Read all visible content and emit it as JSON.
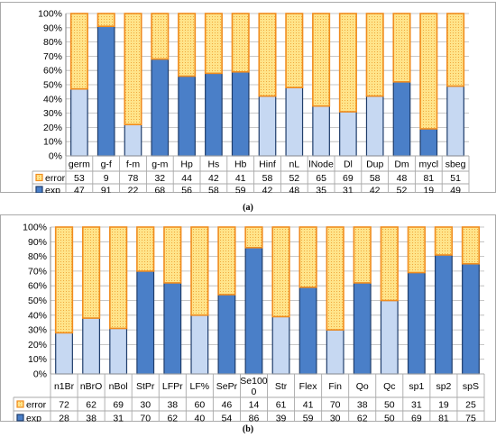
{
  "colors": {
    "error_fill": "#ffe48a",
    "error_border": "#f08c1e",
    "exp_dark": "#4a7fc8",
    "exp_light": "#c6d8f2",
    "exp_border": "#1f3d6b",
    "grid": "#b5b5b5",
    "frame": "#a9a9a9"
  },
  "captions": {
    "a": "(a)",
    "b": "(b)"
  },
  "chart_data": [
    {
      "type": "bar",
      "stacked": true,
      "percent_stacked": true,
      "title": "",
      "xlabel": "",
      "ylabel": "",
      "ylim": [
        0,
        100
      ],
      "yticks": [
        "0%",
        "10%",
        "20%",
        "30%",
        "40%",
        "50%",
        "60%",
        "70%",
        "80%",
        "90%",
        "100%"
      ],
      "grid": true,
      "legend": "data table below plot",
      "categories": [
        "germ",
        "g-f",
        "f-m",
        "g-m",
        "Hp",
        "Hs",
        "Hb",
        "Hinf",
        "nL",
        "lNode",
        "Dl",
        "Dup",
        "Dm",
        "mycl",
        "sbeg"
      ],
      "series": [
        {
          "name": "error",
          "values": [
            53,
            9,
            78,
            32,
            44,
            42,
            41,
            58,
            52,
            65,
            69,
            58,
            48,
            81,
            51
          ]
        },
        {
          "name": "exp",
          "values": [
            47,
            91,
            22,
            68,
            56,
            58,
            59,
            42,
            48,
            35,
            31,
            42,
            52,
            19,
            49
          ]
        }
      ],
      "exp_shade": [
        "light",
        "dark",
        "light",
        "dark",
        "dark",
        "dark",
        "dark",
        "light",
        "light",
        "light",
        "light",
        "light",
        "dark",
        "dark",
        "light"
      ]
    },
    {
      "type": "bar",
      "stacked": true,
      "percent_stacked": true,
      "title": "",
      "xlabel": "",
      "ylabel": "",
      "ylim": [
        0,
        100
      ],
      "yticks": [
        "0%",
        "10%",
        "20%",
        "30%",
        "40%",
        "50%",
        "60%",
        "70%",
        "80%",
        "90%",
        "100%"
      ],
      "grid": true,
      "legend": "data table below plot",
      "categories": [
        "n1Br",
        "nBrO",
        "nBol",
        "StPr",
        "LFPr",
        "LF%",
        "SePr",
        "Se1000",
        "Str",
        "Flex",
        "Fin",
        "Qo",
        "Qc",
        "sp1",
        "sp2",
        "spS"
      ],
      "series": [
        {
          "name": "error",
          "values": [
            72,
            62,
            69,
            30,
            38,
            60,
            46,
            14,
            61,
            41,
            70,
            38,
            50,
            31,
            19,
            25
          ]
        },
        {
          "name": "exp",
          "values": [
            28,
            38,
            31,
            70,
            62,
            40,
            54,
            86,
            39,
            59,
            30,
            62,
            50,
            69,
            81,
            75
          ]
        }
      ],
      "exp_shade": [
        "light",
        "light",
        "light",
        "dark",
        "dark",
        "light",
        "dark",
        "dark",
        "light",
        "dark",
        "light",
        "dark",
        "light",
        "dark",
        "dark",
        "dark"
      ]
    }
  ]
}
